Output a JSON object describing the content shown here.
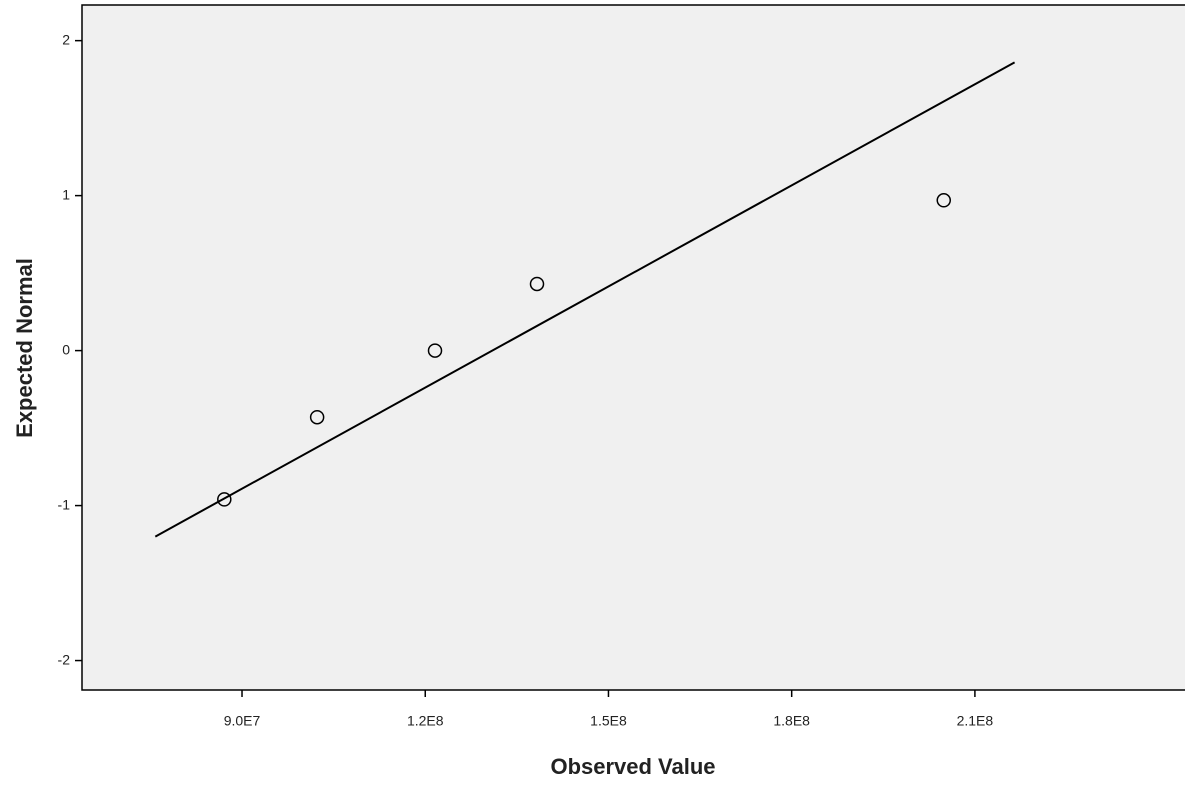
{
  "chart_data": {
    "type": "scatter",
    "x_label": "Observed Value",
    "y_label": "Expected Normal",
    "x": [
      87100000,
      102300000,
      121600000,
      138300000,
      204900000
    ],
    "values": [
      -0.96,
      -0.43,
      0,
      0.43,
      0.97
    ],
    "reference_line": {
      "x": [
        75800000,
        216500000
      ],
      "y": [
        -1.2,
        1.86
      ]
    },
    "xlim": [
      63800000,
      244400000
    ],
    "ylim": [
      -2.19,
      2.23
    ],
    "xticks": [
      {
        "value": 90000000,
        "label": "9.0E7"
      },
      {
        "value": 120000000,
        "label": "1.2E8"
      },
      {
        "value": 150000000,
        "label": "1.5E8"
      },
      {
        "value": 180000000,
        "label": "1.8E8"
      },
      {
        "value": 210000000,
        "label": "2.1E8"
      }
    ],
    "yticks": [
      -2,
      -1,
      0,
      1,
      2
    ],
    "plot_background": "#f0f0f0"
  }
}
